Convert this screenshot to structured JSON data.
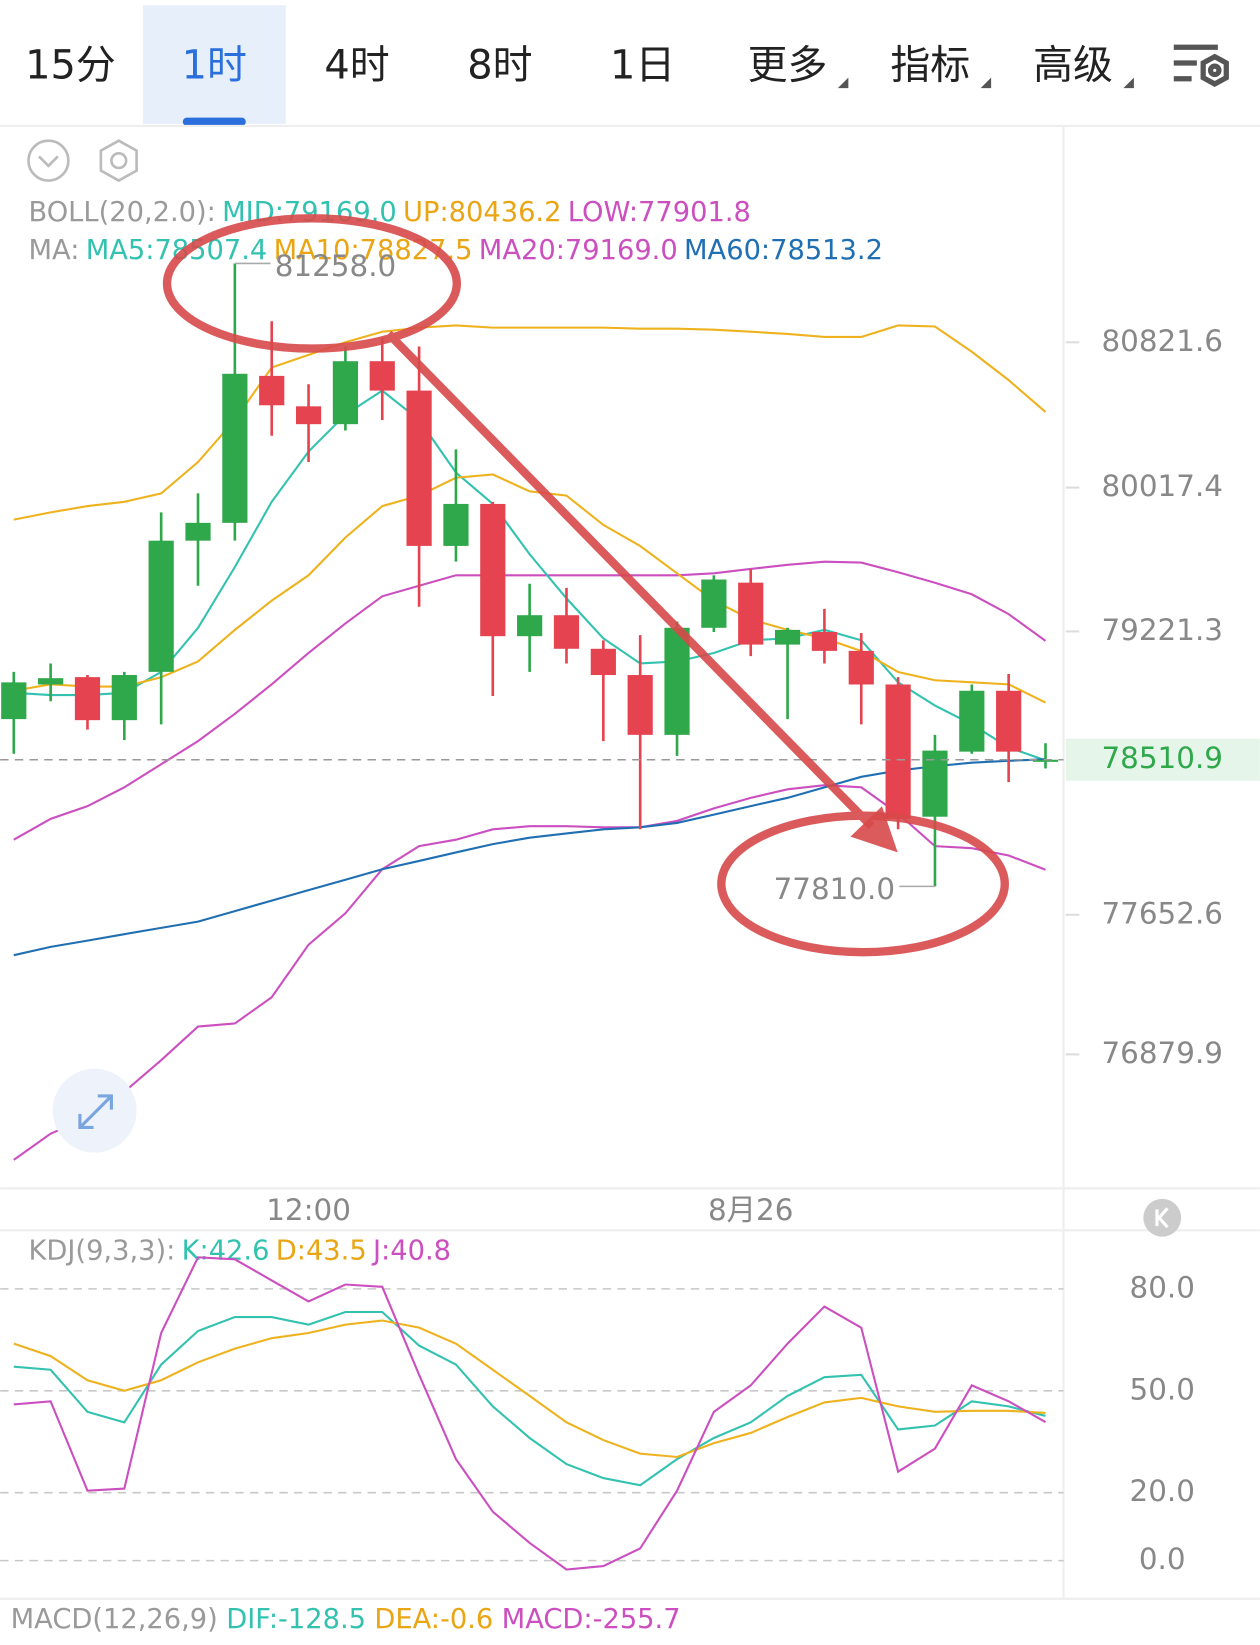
{
  "tabs": [
    "15分",
    "1时",
    "4时",
    "8时",
    "1日",
    "更多",
    "指标",
    "高级"
  ],
  "active_tab": 1,
  "chart_data": [
    {
      "type": "candlestick",
      "legend_rows": [
        [
          {
            "text": "BOLL(20,2.0):",
            "color": "#9a9a9a"
          },
          {
            "text": "MID:79169.0",
            "color": "#33c2b0"
          },
          {
            "text": "UP:80436.2",
            "color": "#eaa514"
          },
          {
            "text": "LOW:77901.8",
            "color": "#cc4fc0"
          }
        ],
        [
          {
            "text": "MA:",
            "color": "#9a9a9a"
          },
          {
            "text": "MA5:78507.4",
            "color": "#33c2b0"
          },
          {
            "text": "MA10:78827.5",
            "color": "#eaa514"
          },
          {
            "text": "MA20:79169.0",
            "color": "#cc4fc0"
          },
          {
            "text": "MA60:78513.2",
            "color": "#1f6fb2"
          }
        ]
      ],
      "categories": [
        null,
        null,
        null,
        null,
        null,
        null,
        null,
        null,
        "12:00",
        null,
        null,
        null,
        null,
        null,
        null,
        null,
        null,
        null,
        null,
        null,
        "8月26",
        null,
        null,
        null,
        null,
        null,
        null,
        null,
        null
      ],
      "open": [
        78735.8,
        78927.5,
        78968.2,
        78730.0,
        78997.3,
        79723.5,
        79822.3,
        80635.7,
        80467.2,
        80368.4,
        80717.0,
        80554.3,
        79694.5,
        79926.9,
        79194.8,
        79311.0,
        79125.1,
        78979.8,
        78648.7,
        79241.3,
        79491.1,
        79148.3,
        79218.0,
        79113.5,
        78927.5,
        78195.5,
        78555.7,
        78892.7,
        78500.0
      ],
      "high": [
        78997.3,
        79043.7,
        78979.8,
        78997.3,
        79880.4,
        79985.0,
        81258.0,
        80937.8,
        80589.2,
        80798.4,
        80844.8,
        80798.4,
        80229.0,
        79938.5,
        79485.3,
        79462.1,
        79171.6,
        79200.6,
        79276.1,
        79531.8,
        79566.6,
        79241.3,
        79345.9,
        79212.2,
        78968.2,
        78648.7,
        78927.5,
        78985.6,
        78602.2
      ],
      "low": [
        78544.1,
        78834.6,
        78677.7,
        78619.6,
        78706.8,
        79473.7,
        79723.5,
        80304.5,
        80159.3,
        80333.6,
        80391.7,
        79357.5,
        79607.3,
        78863.6,
        78997.3,
        79043.7,
        78613.8,
        78125.8,
        78532.5,
        79218.0,
        79084.4,
        78735.8,
        79043.7,
        78706.8,
        78125.8,
        77810.0,
        78544.1,
        78387.2,
        78462.7
      ],
      "close": [
        78939.2,
        78962.4,
        78730.0,
        78979.8,
        79723.5,
        79822.3,
        80647.3,
        80473.0,
        80368.4,
        80717.0,
        80554.3,
        79694.5,
        79926.9,
        79194.8,
        79311.0,
        79125.1,
        78979.8,
        78648.7,
        79241.3,
        79508.5,
        79148.3,
        79229.7,
        79113.5,
        78927.5,
        78183.9,
        78561.5,
        78892.7,
        78555.7,
        78510.9
      ],
      "up_color": "#2ea84a",
      "down_color": "#e5434f",
      "series": [
        {
          "color": "#eeb21e",
          "values": [
            79840,
            79880,
            79915,
            79939,
            79985,
            80159,
            80392,
            80682,
            80752,
            80822,
            80880,
            80903,
            80915,
            80903,
            80903,
            80903,
            80903,
            80897,
            80897,
            80891,
            80880,
            80868,
            80851,
            80851,
            80915,
            80909,
            80769,
            80612,
            80436.2
          ]
        },
        {
          "color": "#cc4fc0",
          "values": [
            78068,
            78184,
            78254,
            78358,
            78486,
            78614,
            78765,
            78928,
            79102,
            79265,
            79416,
            79474,
            79532,
            79532,
            79532,
            79532,
            79532,
            79532,
            79532,
            79543,
            79567,
            79590,
            79607,
            79602,
            79549,
            79491,
            79427,
            79317,
            79169.0
          ]
        },
        {
          "color": "#cc4fc0",
          "values": [
            76296,
            76441,
            76528,
            76673,
            76848,
            77034,
            77051,
            77196,
            77487,
            77661,
            77905,
            78033,
            78068,
            78126,
            78143,
            78143,
            78137,
            78137,
            78172,
            78242,
            78300,
            78347,
            78370,
            78358,
            78213,
            78033,
            78021,
            77981,
            77901.8
          ]
        },
        {
          "color": "#33c2b0",
          "values": [
            78881,
            78869,
            78869,
            78881,
            78997,
            79241,
            79578,
            79939,
            80217,
            80421,
            80554,
            80392,
            80101,
            79927,
            79648,
            79404,
            79183,
            79044,
            79055,
            79102,
            79172,
            79183,
            79230,
            79172,
            78939,
            78811,
            78707,
            78579,
            78507.4
          ]
        },
        {
          "color": "#eeb21e",
          "values": [
            78893,
            78928,
            78916,
            78916,
            78968,
            79055,
            79230,
            79392,
            79532,
            79741,
            79915,
            79973,
            80072,
            80090,
            79997,
            79973,
            79811,
            79694,
            79543,
            79392,
            79288,
            79230,
            79183,
            79113,
            78997,
            78951,
            78939,
            78928,
            78827.5
          ]
        },
        {
          "color": "#1f6fb2",
          "values": [
            77429,
            77475,
            77510,
            77545,
            77580,
            77615,
            77673,
            77731,
            77789,
            77847,
            77905,
            77951,
            77998,
            78044,
            78079,
            78103,
            78126,
            78137,
            78161,
            78207,
            78254,
            78300,
            78358,
            78416,
            78451,
            78475,
            78495,
            78505,
            78513.2
          ]
        }
      ],
      "last_price": 78510.9,
      "extreme_labels": [
        {
          "value": 81258.0,
          "label": "81258.0"
        },
        {
          "value": 77810.0,
          "label": "77810.0"
        }
      ],
      "ylim": [
        76150,
        81990
      ],
      "yticks": [
        80821.6,
        80017.4,
        79221.3,
        77652.6,
        76879.9
      ]
    },
    {
      "type": "line",
      "legend_rows": [
        [
          {
            "text": "KDJ(9,3,3):",
            "color": "#9a9a9a"
          },
          {
            "text": "K:42.6",
            "color": "#33c2b0"
          },
          {
            "text": "D:43.5",
            "color": "#eaa514"
          },
          {
            "text": "J:40.8",
            "color": "#cc4fc0"
          }
        ]
      ],
      "series": [
        {
          "color": "#33c2b0",
          "values": [
            57.1,
            56.2,
            43.8,
            40.7,
            57.7,
            67.6,
            71.7,
            71.7,
            69.5,
            73.2,
            73.2,
            63.3,
            57.7,
            45.4,
            36.1,
            28.4,
            24.3,
            22.2,
            29.9,
            36.1,
            40.7,
            48.5,
            54.0,
            54.7,
            38.6,
            39.8,
            46.9,
            45.4,
            42.6
          ]
        },
        {
          "color": "#eeb21e",
          "values": [
            63.9,
            60.2,
            53.1,
            50.0,
            53.1,
            58.4,
            62.4,
            65.5,
            67.0,
            69.5,
            70.7,
            68.6,
            63.9,
            56.2,
            48.5,
            40.7,
            35.5,
            31.5,
            30.5,
            34.6,
            37.6,
            42.3,
            46.6,
            47.9,
            45.4,
            43.8,
            44.1,
            44.1,
            43.5
          ]
        },
        {
          "color": "#cc4fc0",
          "values": [
            46.0,
            46.9,
            20.6,
            21.2,
            67.0,
            89.3,
            88.7,
            82.5,
            76.3,
            81.3,
            80.6,
            54.7,
            29.9,
            14.4,
            5.2,
            -2.6,
            -1.6,
            3.6,
            20.6,
            43.8,
            51.6,
            63.9,
            74.8,
            68.6,
            26.2,
            33.0,
            51.6,
            46.9,
            40.8
          ]
        }
      ],
      "ylim": [
        -10,
        96
      ],
      "yticks": [
        {
          "value": 80,
          "label": "80.0"
        },
        {
          "value": 50,
          "label": "50.0"
        },
        {
          "value": 20,
          "label": "20.0"
        },
        {
          "value": 0,
          "label": "0.0"
        }
      ],
      "grid": true
    }
  ],
  "macd_legend": [
    {
      "text": "MACD(12,26,9)",
      "color": "#9a9a9a"
    },
    {
      "text": "DIF:-128.5",
      "color": "#33c2b0"
    },
    {
      "text": "DEA:-0.6",
      "color": "#eaa514"
    },
    {
      "text": "MACD:-255.7",
      "color": "#cc4fc0"
    }
  ]
}
